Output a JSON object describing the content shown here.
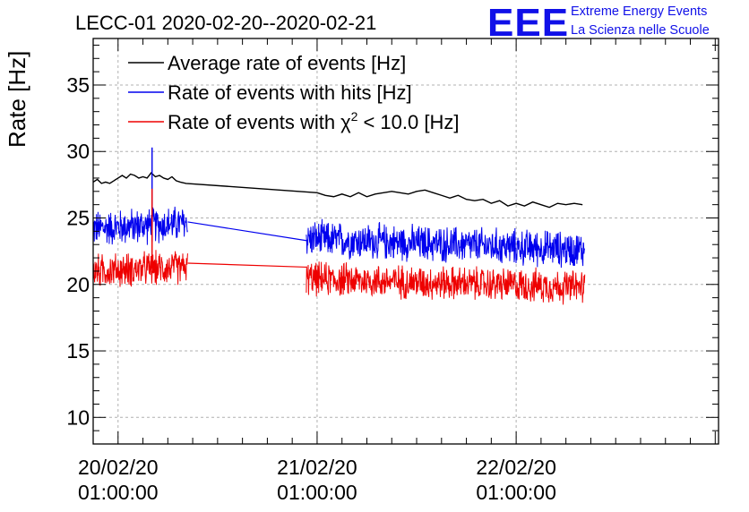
{
  "header": {
    "title": "LECC-01 2020-02-20--2020-02-21",
    "logo_mark": "EEE",
    "logo_line1": "Extreme Energy Events",
    "logo_line2": "La Scienza nelle Scuole",
    "logo_color": "#1010e8"
  },
  "chart_data": {
    "type": "line",
    "title": "LECC-01 2020-02-20--2020-02-21",
    "xlabel": "",
    "ylabel": "Rate [Hz]",
    "x_unit": "hours",
    "xlim_hours": [
      -3,
      72.4
    ],
    "ylim": [
      8,
      38.5
    ],
    "yticks": [
      10,
      15,
      20,
      25,
      30,
      35
    ],
    "xticks": [
      {
        "hour": 0,
        "date": "20/02/20",
        "time": "01:00:00"
      },
      {
        "hour": 24,
        "date": "21/02/20",
        "time": "01:00:00"
      },
      {
        "hour": 48,
        "date": "22/02/20",
        "time": "01:00:00"
      }
    ],
    "grid": true,
    "legend": "top-left",
    "series": [
      {
        "name": "Average rate of events [Hz]",
        "color": "#000000",
        "legend_text": "Average rate of events [Hz]",
        "points": [
          [
            -3,
            27.7
          ],
          [
            -2.5,
            27.9
          ],
          [
            -2,
            27.6
          ],
          [
            -1.5,
            27.7
          ],
          [
            -1,
            27.6
          ],
          [
            -0.5,
            27.8
          ],
          [
            0,
            28.0
          ],
          [
            0.5,
            28.2
          ],
          [
            1,
            28.0
          ],
          [
            1.5,
            28.3
          ],
          [
            2,
            28.2
          ],
          [
            2.5,
            28.0
          ],
          [
            3,
            28.1
          ],
          [
            3.5,
            28.0
          ],
          [
            4,
            28.4
          ],
          [
            4.5,
            28.1
          ],
          [
            5,
            28.2
          ],
          [
            5.5,
            28.0
          ],
          [
            6,
            27.9
          ],
          [
            6.5,
            28.1
          ],
          [
            7,
            27.8
          ],
          [
            7.5,
            27.7
          ],
          [
            8.2,
            27.6
          ],
          [
            24,
            26.9
          ],
          [
            25,
            26.7
          ],
          [
            26,
            26.6
          ],
          [
            27,
            26.8
          ],
          [
            28,
            26.6
          ],
          [
            29,
            26.9
          ],
          [
            30,
            26.6
          ],
          [
            31,
            26.8
          ],
          [
            32,
            26.9
          ],
          [
            33,
            27.0
          ],
          [
            34,
            26.9
          ],
          [
            35,
            26.8
          ],
          [
            36,
            27.0
          ],
          [
            37,
            27.1
          ],
          [
            38,
            26.9
          ],
          [
            39,
            26.7
          ],
          [
            40,
            26.5
          ],
          [
            41,
            26.7
          ],
          [
            42,
            26.4
          ],
          [
            43,
            26.3
          ],
          [
            44,
            26.4
          ],
          [
            45,
            26.1
          ],
          [
            46,
            26.3
          ],
          [
            47,
            25.9
          ],
          [
            48,
            26.1
          ],
          [
            49,
            25.9
          ],
          [
            50,
            26.2
          ],
          [
            51,
            26.0
          ],
          [
            52,
            25.8
          ],
          [
            53,
            26.1
          ],
          [
            54,
            26.0
          ],
          [
            55,
            26.1
          ],
          [
            56,
            26.0
          ]
        ]
      },
      {
        "name": "Rate of events with hits [Hz]",
        "color": "#0000ee",
        "legend_text": "Rate of events with hits [Hz]",
        "mean_segments": [
          [
            -3,
            24.2
          ],
          [
            8.4,
            24.6
          ],
          [
            24,
            23.4
          ],
          [
            56,
            22.6
          ]
        ],
        "noise_amplitude": 1.6,
        "gap_line": [
          [
            8.4,
            24.7
          ],
          [
            22.7,
            23.3
          ]
        ],
        "spike": {
          "x": 4.1,
          "y": 30.3
        }
      },
      {
        "name": "Rate of events with χ2 < 10.0 [Hz]",
        "color": "#ee0000",
        "legend_prefix": "Rate of events with",
        "legend_chi": "χ",
        "legend_sup": "2",
        "legend_suffix": "< 10.0 [Hz]",
        "mean_segments": [
          [
            -3,
            21.0
          ],
          [
            8.4,
            21.3
          ],
          [
            24,
            20.4
          ],
          [
            56,
            19.8
          ]
        ],
        "noise_amplitude": 1.5,
        "gap_line": [
          [
            8.4,
            21.6
          ],
          [
            22.7,
            21.3
          ]
        ],
        "spike": {
          "x": 4.1,
          "y": 27.2
        }
      }
    ]
  }
}
